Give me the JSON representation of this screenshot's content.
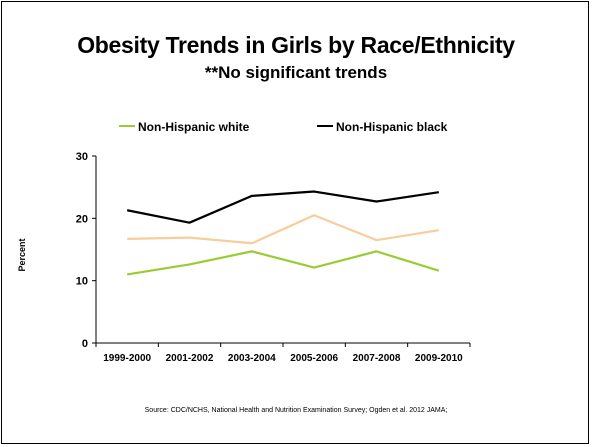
{
  "chart_data": {
    "type": "line",
    "title": "Obesity Trends in Girls by Race/Ethnicity",
    "subtitle": "**No significant trends",
    "xlabel": "",
    "ylabel": "Percent",
    "categories": [
      "1999-2000",
      "2001-2002",
      "2003-2004",
      "2005-2006",
      "2007-2008",
      "2009-2010"
    ],
    "ylim": [
      0,
      30
    ],
    "yticks": [
      "0",
      "10",
      "20",
      "30"
    ],
    "grid": false,
    "legend_position": "top",
    "series": [
      {
        "name": "Non-Hispanic white",
        "color": "#99cc33",
        "values": [
          11.0,
          12.6,
          14.7,
          12.1,
          14.7,
          11.6
        ]
      },
      {
        "name": "Non-Hispanic black",
        "color": "#000000",
        "values": [
          21.3,
          19.3,
          23.6,
          24.3,
          22.7,
          24.2
        ]
      },
      {
        "name": "",
        "color": "#f7cd9a",
        "values": [
          16.7,
          16.9,
          16.0,
          20.5,
          16.5,
          18.1
        ]
      }
    ]
  },
  "source": "Source: CDC/NCHS, National Health and Nutrition Examination Survey; Ogden et al. 2012 JAMA;"
}
